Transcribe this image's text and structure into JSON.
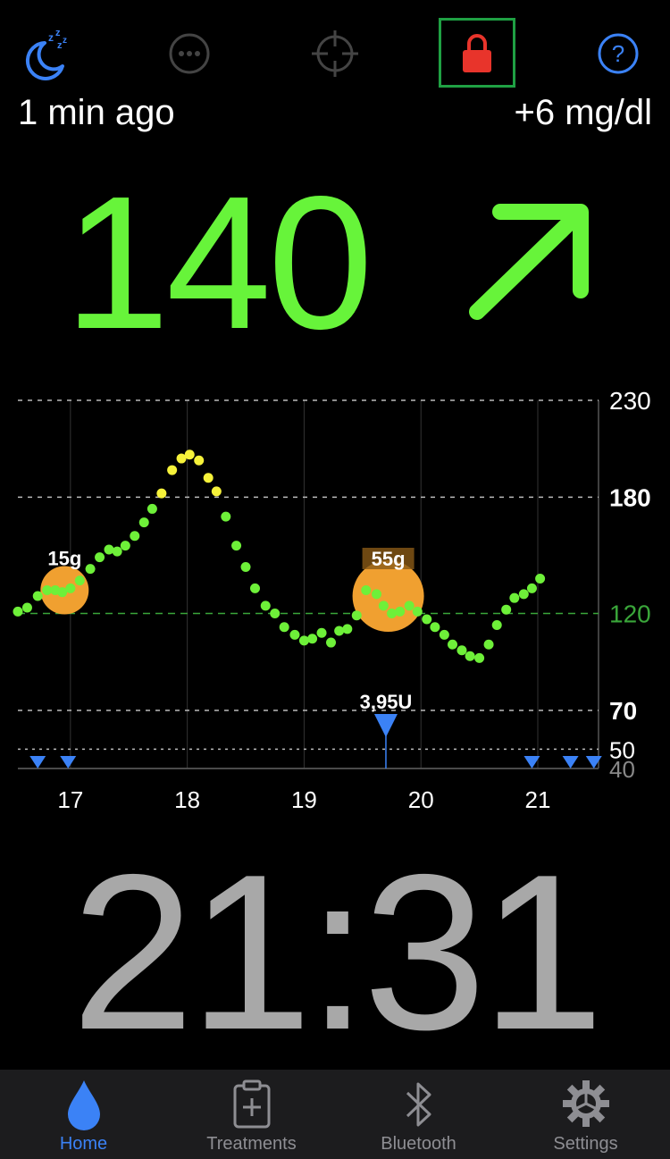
{
  "toolbar": {
    "sleep_icon": "moon-zzz-icon",
    "more_icon": "ellipsis-circle-icon",
    "target_icon": "crosshair-icon",
    "lock_icon": "lock-icon",
    "help_icon": "question-circle-icon"
  },
  "reading": {
    "time_ago": "1 min ago",
    "delta": "+6 mg/dl",
    "value": "140",
    "trend_icon": "arrow-up-right-icon",
    "color": "#67f43a"
  },
  "chart_data": {
    "type": "scatter",
    "x_ticks": [
      "17",
      "18",
      "19",
      "20",
      "21"
    ],
    "y_labels": [
      "230",
      "180",
      "120",
      "70",
      "50",
      "40"
    ],
    "ylim": [
      40,
      230
    ],
    "xlim": [
      16.55,
      21.52
    ],
    "target_line": 120,
    "colors": {
      "in_range": "#6ef039",
      "high": "#f6f23a",
      "carbs": "#f0a030",
      "insulin": "#3b82f6",
      "target": "#3aa63a"
    },
    "glucose": [
      [
        16.55,
        121
      ],
      [
        16.63,
        123
      ],
      [
        16.72,
        129
      ],
      [
        16.8,
        132
      ],
      [
        16.87,
        132
      ],
      [
        16.93,
        131
      ],
      [
        17.0,
        133
      ],
      [
        17.08,
        137
      ],
      [
        17.17,
        143
      ],
      [
        17.25,
        149
      ],
      [
        17.33,
        153
      ],
      [
        17.4,
        152
      ],
      [
        17.47,
        155
      ],
      [
        17.55,
        160
      ],
      [
        17.63,
        167
      ],
      [
        17.7,
        174
      ],
      [
        17.78,
        182
      ],
      [
        17.87,
        194
      ],
      [
        17.95,
        200
      ],
      [
        18.02,
        202
      ],
      [
        18.1,
        199
      ],
      [
        18.18,
        190
      ],
      [
        18.25,
        183
      ],
      [
        18.33,
        170
      ],
      [
        18.42,
        155
      ],
      [
        18.5,
        144
      ],
      [
        18.58,
        133
      ],
      [
        18.67,
        124
      ],
      [
        18.75,
        120
      ],
      [
        18.83,
        113
      ],
      [
        18.92,
        109
      ],
      [
        19.0,
        106
      ],
      [
        19.07,
        107
      ],
      [
        19.15,
        110
      ],
      [
        19.23,
        105
      ],
      [
        19.3,
        111
      ],
      [
        19.37,
        112
      ],
      [
        19.45,
        119
      ],
      [
        19.53,
        132
      ],
      [
        19.62,
        130
      ],
      [
        19.68,
        124
      ],
      [
        19.75,
        120
      ],
      [
        19.82,
        121
      ],
      [
        19.9,
        124
      ],
      [
        19.97,
        121
      ],
      [
        20.05,
        117
      ],
      [
        20.12,
        113
      ],
      [
        20.2,
        109
      ],
      [
        20.27,
        104
      ],
      [
        20.35,
        101
      ],
      [
        20.42,
        98
      ],
      [
        20.5,
        97
      ],
      [
        20.58,
        104
      ],
      [
        20.65,
        114
      ],
      [
        20.73,
        122
      ],
      [
        20.8,
        128
      ],
      [
        20.88,
        130
      ],
      [
        20.95,
        133
      ],
      [
        21.02,
        138
      ]
    ],
    "carbs": [
      {
        "x": 16.95,
        "y": 132,
        "label": "15g",
        "size": 15
      },
      {
        "x": 19.72,
        "y": 129,
        "label": "55g",
        "size": 55
      }
    ],
    "bolus": [
      {
        "x": 19.7,
        "label": "3,95U"
      }
    ],
    "basal_markers": [
      16.72,
      16.98,
      20.95,
      21.28,
      21.48
    ]
  },
  "clock": {
    "time": "21:31"
  },
  "tabs": [
    {
      "label": "Home",
      "icon": "water-drop-icon",
      "active": true
    },
    {
      "label": "Treatments",
      "icon": "clipboard-plus-icon",
      "active": false
    },
    {
      "label": "Bluetooth",
      "icon": "bluetooth-icon",
      "active": false
    },
    {
      "label": "Settings",
      "icon": "gear-icon",
      "active": false
    }
  ]
}
